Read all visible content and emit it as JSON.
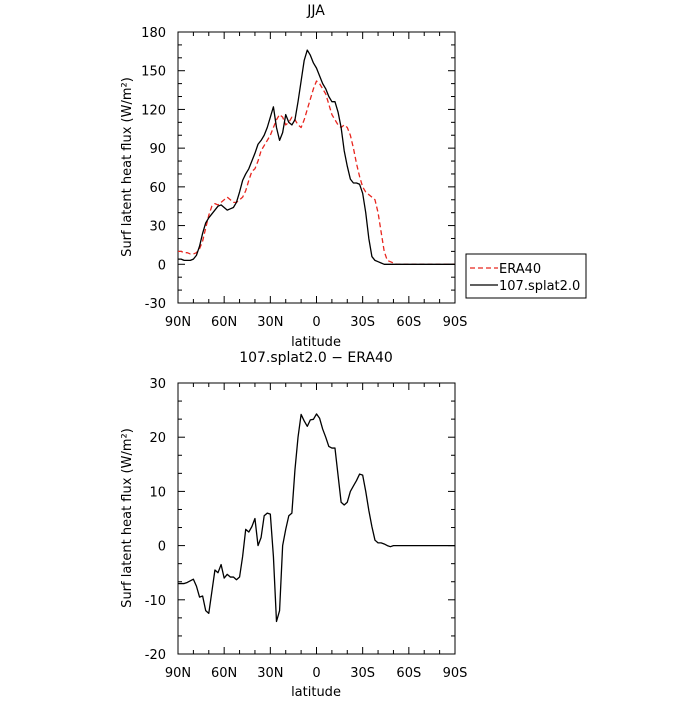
{
  "chart_data": [
    {
      "type": "line",
      "title": "JJA",
      "xlabel": "latitude",
      "ylabel": "Surf latent heat flux (W/m²)",
      "xlim": [
        90,
        -90
      ],
      "ylim": [
        -30,
        180
      ],
      "yticks": [
        -30,
        0,
        30,
        60,
        90,
        120,
        150,
        180
      ],
      "xticks": [
        {
          "value": 90,
          "label": "90N"
        },
        {
          "value": 60,
          "label": "60N"
        },
        {
          "value": 30,
          "label": "30N"
        },
        {
          "value": 0,
          "label": "0"
        },
        {
          "value": -30,
          "label": "30S"
        },
        {
          "value": -60,
          "label": "60S"
        },
        {
          "value": -90,
          "label": "90S"
        }
      ],
      "grid": false,
      "legend_position": "right",
      "series": [
        {
          "name": "ERA40",
          "color": "#e8261f",
          "dash": true,
          "x": [
            90,
            88,
            86,
            84,
            82,
            80,
            78,
            76,
            74,
            72,
            70,
            68,
            66,
            64,
            62,
            60,
            58,
            56,
            54,
            52,
            50,
            48,
            46,
            44,
            42,
            40,
            38,
            36,
            34,
            32,
            30,
            28,
            26,
            24,
            22,
            20,
            18,
            16,
            14,
            12,
            10,
            8,
            6,
            4,
            2,
            0,
            -2,
            -4,
            -6,
            -8,
            -10,
            -12,
            -14,
            -16,
            -18,
            -20,
            -22,
            -24,
            -26,
            -28,
            -30,
            -32,
            -34,
            -36,
            -38,
            -40,
            -42,
            -44,
            -46,
            -48,
            -50,
            -52,
            -54,
            -56,
            -58,
            -60,
            -62,
            -64,
            -66,
            -68,
            -70,
            -72,
            -74,
            -76,
            -78,
            -80,
            -82,
            -84,
            -86,
            -88,
            -90
          ],
          "y": [
            10,
            10,
            9,
            9,
            8,
            8,
            9,
            12,
            18,
            28,
            38,
            45,
            47,
            46,
            48,
            50,
            52,
            50,
            48,
            48,
            50,
            52,
            57,
            65,
            72,
            74,
            80,
            88,
            92,
            96,
            100,
            106,
            112,
            116,
            114,
            108,
            110,
            114,
            112,
            108,
            106,
            112,
            120,
            128,
            136,
            142,
            140,
            136,
            132,
            124,
            116,
            112,
            108,
            106,
            108,
            106,
            100,
            90,
            78,
            68,
            60,
            56,
            54,
            52,
            50,
            40,
            25,
            10,
            3,
            2,
            1,
            0,
            0,
            0,
            0,
            0,
            0,
            0,
            0,
            0,
            0,
            0,
            0,
            0,
            0,
            0,
            0,
            0,
            0,
            0,
            0
          ]
        },
        {
          "name": "107.splat2.0",
          "color": "#000000",
          "dash": false,
          "x": [
            90,
            88,
            86,
            84,
            82,
            80,
            78,
            76,
            74,
            72,
            70,
            68,
            66,
            64,
            62,
            60,
            58,
            56,
            54,
            52,
            50,
            48,
            46,
            44,
            42,
            40,
            38,
            36,
            34,
            32,
            30,
            28,
            26,
            24,
            22,
            20,
            18,
            16,
            14,
            12,
            10,
            8,
            6,
            4,
            2,
            0,
            -2,
            -4,
            -6,
            -8,
            -10,
            -12,
            -14,
            -16,
            -18,
            -20,
            -22,
            -24,
            -26,
            -28,
            -30,
            -32,
            -34,
            -36,
            -38,
            -40,
            -42,
            -44,
            -46,
            -48,
            -50,
            -52,
            -54,
            -56,
            -58,
            -60,
            -62,
            -64,
            -66,
            -68,
            -70,
            -72,
            -74,
            -76,
            -78,
            -80,
            -82,
            -84,
            -86,
            -88,
            -90
          ],
          "y": [
            4,
            4,
            3,
            3,
            3,
            4,
            7,
            14,
            24,
            32,
            36,
            39,
            42,
            45,
            46,
            44,
            42,
            43,
            44,
            48,
            56,
            65,
            70,
            74,
            80,
            86,
            93,
            96,
            100,
            106,
            114,
            122,
            106,
            96,
            102,
            116,
            110,
            108,
            112,
            126,
            142,
            158,
            166,
            162,
            156,
            152,
            146,
            140,
            136,
            130,
            126,
            126,
            118,
            106,
            88,
            76,
            66,
            63,
            63,
            62,
            55,
            40,
            20,
            6,
            3,
            2,
            1,
            0,
            0,
            0,
            0,
            0,
            0,
            0,
            0,
            0,
            0,
            0,
            0,
            0,
            0,
            0,
            0,
            0,
            0,
            0,
            0,
            0,
            0,
            0,
            0
          ]
        }
      ]
    },
    {
      "type": "line",
      "title": "107.splat2.0 − ERA40",
      "xlabel": "latitude",
      "ylabel": "Surf latent heat flux (W/m²)",
      "xlim": [
        90,
        -90
      ],
      "ylim": [
        -20,
        30
      ],
      "yticks": [
        -20,
        -10,
        0,
        10,
        20,
        30
      ],
      "xticks": [
        {
          "value": 90,
          "label": "90N"
        },
        {
          "value": 60,
          "label": "60N"
        },
        {
          "value": 30,
          "label": "30N"
        },
        {
          "value": 0,
          "label": "0"
        },
        {
          "value": -30,
          "label": "30S"
        },
        {
          "value": -60,
          "label": "60S"
        },
        {
          "value": -90,
          "label": "90S"
        }
      ],
      "grid": false,
      "series": [
        {
          "color": "#000000",
          "dash": false,
          "x": [
            90,
            88,
            86,
            84,
            82,
            80,
            78,
            76,
            74,
            72,
            70,
            68,
            66,
            64,
            62,
            60,
            58,
            56,
            54,
            52,
            50,
            48,
            46,
            44,
            42,
            40,
            38,
            36,
            34,
            32,
            30,
            28,
            26,
            24,
            22,
            20,
            18,
            16,
            14,
            12,
            10,
            8,
            6,
            4,
            2,
            0,
            -2,
            -4,
            -6,
            -8,
            -10,
            -12,
            -14,
            -16,
            -18,
            -20,
            -22,
            -24,
            -26,
            -28,
            -30,
            -32,
            -34,
            -36,
            -38,
            -40,
            -42,
            -44,
            -46,
            -48,
            -50,
            -52,
            -54,
            -56,
            -58,
            -60,
            -62,
            -64,
            -66,
            -68,
            -70,
            -72,
            -74,
            -76,
            -78,
            -80,
            -82,
            -84,
            -86,
            -88,
            -90
          ],
          "y": [
            -7,
            -7,
            -7,
            -6.8,
            -6.5,
            -6.2,
            -7.5,
            -9.5,
            -9.3,
            -12,
            -12.5,
            -8.5,
            -4.5,
            -5,
            -3.5,
            -6,
            -5.3,
            -5.8,
            -5.8,
            -6.3,
            -5.8,
            -2,
            3,
            2.5,
            3.5,
            5,
            0,
            1.5,
            5.5,
            6,
            5.8,
            -2,
            -14,
            -12,
            0,
            3,
            5.5,
            6,
            14,
            20,
            24.2,
            23,
            22,
            23.2,
            23.3,
            24.3,
            23.5,
            21.5,
            20,
            18.3,
            18,
            18,
            13,
            8,
            7.5,
            8,
            10,
            11,
            12,
            13.2,
            13,
            10,
            6.5,
            3.5,
            1,
            0.5,
            0.5,
            0.3,
            0,
            -0.2,
            0,
            0,
            0,
            0,
            0,
            0,
            0,
            0,
            0,
            0,
            0,
            0,
            0,
            0,
            0,
            0,
            0,
            0,
            0,
            0,
            0
          ]
        }
      ]
    }
  ]
}
